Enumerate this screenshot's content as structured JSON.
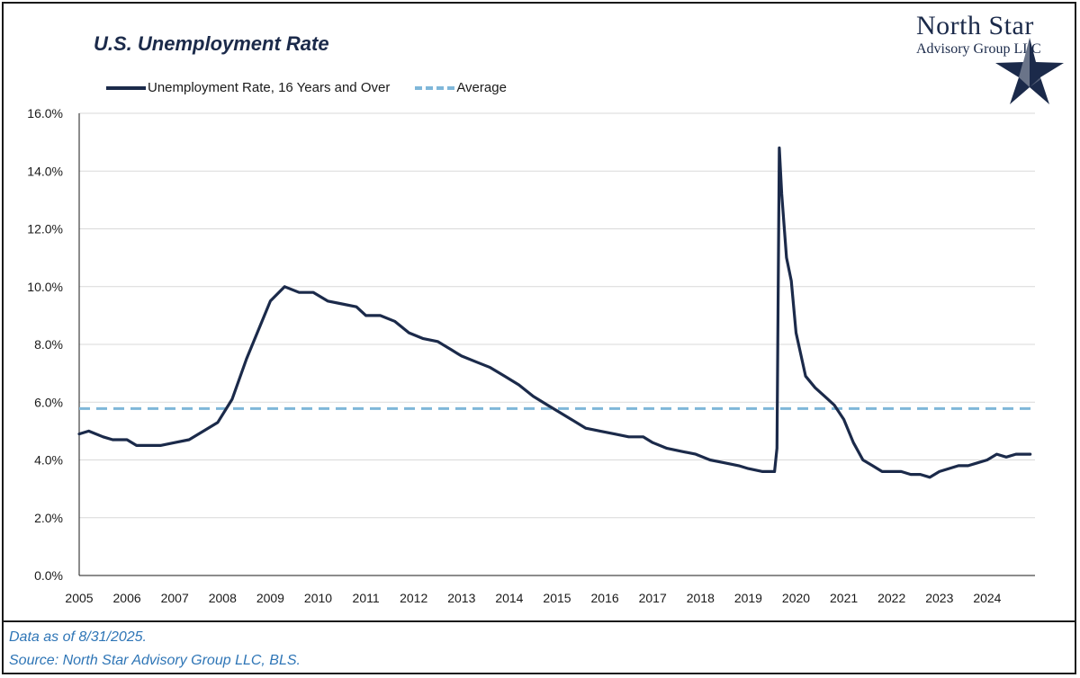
{
  "header": {
    "title": "U.S. Unemployment Rate",
    "logo_name": "North Star",
    "logo_sub": "Advisory Group",
    "logo_llc": "LLC"
  },
  "legend": {
    "series_label": "Unemployment Rate, 16 Years and Over",
    "average_label": "Average"
  },
  "footer": {
    "data_as_of": "Data as of 8/31/2025.",
    "source": "Source: North Star Advisory Group LLC, BLS."
  },
  "colors": {
    "series": "#1b2a4a",
    "average": "#7fb7d9",
    "grid": "#d9d9d9",
    "footer_text": "#2e75b6"
  },
  "chart_data": {
    "type": "line",
    "title": "U.S. Unemployment Rate",
    "xlabel": "",
    "ylabel": "",
    "ylim": [
      0,
      16
    ],
    "xlim": [
      2005,
      2025
    ],
    "y_ticks": [
      0,
      2,
      4,
      6,
      8,
      10,
      12,
      14,
      16
    ],
    "y_tick_labels": [
      "0.0%",
      "2.0%",
      "4.0%",
      "6.0%",
      "8.0%",
      "10.0%",
      "12.0%",
      "14.0%",
      "16.0%"
    ],
    "x_tick_labels": [
      "2005",
      "2006",
      "2007",
      "2008",
      "2009",
      "2010",
      "2011",
      "2012",
      "2013",
      "2014",
      "2015",
      "2016",
      "2017",
      "2018",
      "2019",
      "2020",
      "2021",
      "2022",
      "2023",
      "2024"
    ],
    "grid": "horizontal",
    "legend_position": "top-left",
    "average": 5.78,
    "series": [
      {
        "name": "Unemployment Rate, 16 Years and Over",
        "x": [
          2005.0,
          2005.2,
          2005.5,
          2005.7,
          2006.0,
          2006.2,
          2006.5,
          2006.7,
          2007.0,
          2007.3,
          2007.6,
          2007.9,
          2008.2,
          2008.5,
          2008.8,
          2009.0,
          2009.3,
          2009.6,
          2009.9,
          2010.2,
          2010.5,
          2010.8,
          2011.0,
          2011.3,
          2011.6,
          2011.9,
          2012.2,
          2012.5,
          2012.8,
          2013.0,
          2013.3,
          2013.6,
          2013.9,
          2014.2,
          2014.5,
          2014.8,
          2015.0,
          2015.3,
          2015.6,
          2015.9,
          2016.2,
          2016.5,
          2016.8,
          2017.0,
          2017.3,
          2017.6,
          2017.9,
          2018.2,
          2018.5,
          2018.8,
          2019.0,
          2019.3,
          2019.55,
          2019.6,
          2019.65,
          2019.7,
          2019.8,
          2019.9,
          2020.0,
          2020.2,
          2020.4,
          2020.6,
          2020.8,
          2021.0,
          2021.2,
          2021.4,
          2021.6,
          2021.8,
          2022.0,
          2022.2,
          2022.4,
          2022.6,
          2022.8,
          2023.0,
          2023.2,
          2023.4,
          2023.6,
          2023.8,
          2024.0,
          2024.2,
          2024.4,
          2024.6,
          2024.9
        ],
        "values": [
          4.9,
          5.0,
          4.8,
          4.7,
          4.7,
          4.5,
          4.5,
          4.5,
          4.6,
          4.7,
          5.0,
          5.3,
          6.1,
          7.5,
          8.7,
          9.5,
          10.0,
          9.8,
          9.8,
          9.5,
          9.4,
          9.3,
          9.0,
          9.0,
          8.8,
          8.4,
          8.2,
          8.1,
          7.8,
          7.6,
          7.4,
          7.2,
          6.9,
          6.6,
          6.2,
          5.9,
          5.7,
          5.4,
          5.1,
          5.0,
          4.9,
          4.8,
          4.8,
          4.6,
          4.4,
          4.3,
          4.2,
          4.0,
          3.9,
          3.8,
          3.7,
          3.6,
          3.6,
          4.4,
          14.8,
          13.2,
          11.0,
          10.2,
          8.4,
          6.9,
          6.5,
          6.2,
          5.9,
          5.4,
          4.6,
          4.0,
          3.8,
          3.6,
          3.6,
          3.6,
          3.5,
          3.5,
          3.4,
          3.6,
          3.7,
          3.8,
          3.8,
          3.9,
          4.0,
          4.2,
          4.1,
          4.2,
          4.2
        ]
      }
    ]
  }
}
